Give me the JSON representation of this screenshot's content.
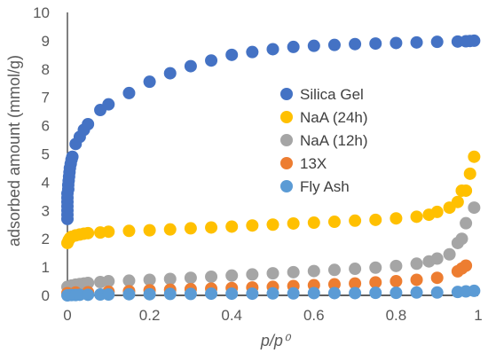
{
  "chart_data": {
    "type": "scatter",
    "title": "",
    "xlabel": "p/p⁰",
    "ylabel": "adsorbed amount (mmol/g)",
    "xlim": [
      0,
      1
    ],
    "ylim": [
      0,
      10
    ],
    "x_ticks": [
      "0",
      "0.2",
      "0.4",
      "0.6",
      "0.8",
      "1"
    ],
    "y_ticks": [
      "0",
      "1",
      "2",
      "3",
      "4",
      "5",
      "6",
      "7",
      "8",
      "9",
      "10"
    ],
    "grid": false,
    "legend_position": "right",
    "series": [
      {
        "name": "Silica Gel",
        "color": "#4472C4",
        "points": [
          [
            0,
            2.7
          ],
          [
            0,
            2.85
          ],
          [
            0,
            3.0
          ],
          [
            0,
            3.15
          ],
          [
            0,
            3.3
          ],
          [
            0,
            3.45
          ],
          [
            0,
            3.6
          ],
          [
            0.002,
            3.75
          ],
          [
            0.002,
            3.9
          ],
          [
            0.003,
            4.05
          ],
          [
            0.004,
            4.2
          ],
          [
            0.005,
            4.35
          ],
          [
            0.006,
            4.5
          ],
          [
            0.008,
            4.65
          ],
          [
            0.01,
            4.8
          ],
          [
            0.012,
            4.9
          ],
          [
            0.02,
            5.35
          ],
          [
            0.03,
            5.6
          ],
          [
            0.04,
            5.85
          ],
          [
            0.05,
            6.05
          ],
          [
            0.08,
            6.55
          ],
          [
            0.1,
            6.75
          ],
          [
            0.15,
            7.15
          ],
          [
            0.2,
            7.55
          ],
          [
            0.25,
            7.85
          ],
          [
            0.3,
            8.1
          ],
          [
            0.35,
            8.3
          ],
          [
            0.4,
            8.5
          ],
          [
            0.45,
            8.6
          ],
          [
            0.5,
            8.7
          ],
          [
            0.55,
            8.78
          ],
          [
            0.6,
            8.82
          ],
          [
            0.65,
            8.85
          ],
          [
            0.7,
            8.88
          ],
          [
            0.75,
            8.9
          ],
          [
            0.8,
            8.92
          ],
          [
            0.85,
            8.94
          ],
          [
            0.9,
            8.96
          ],
          [
            0.95,
            8.97
          ],
          [
            0.97,
            8.98
          ],
          [
            0.98,
            8.99
          ],
          [
            0.99,
            9.0
          ]
        ]
      },
      {
        "name": "NaA (24h)",
        "color": "#FFC000",
        "points": [
          [
            0,
            1.85
          ],
          [
            0.003,
            1.95
          ],
          [
            0.006,
            2.02
          ],
          [
            0.01,
            2.07
          ],
          [
            0.02,
            2.12
          ],
          [
            0.03,
            2.15
          ],
          [
            0.04,
            2.18
          ],
          [
            0.05,
            2.2
          ],
          [
            0.08,
            2.22
          ],
          [
            0.1,
            2.25
          ],
          [
            0.15,
            2.28
          ],
          [
            0.2,
            2.3
          ],
          [
            0.25,
            2.33
          ],
          [
            0.3,
            2.37
          ],
          [
            0.35,
            2.4
          ],
          [
            0.4,
            2.43
          ],
          [
            0.45,
            2.47
          ],
          [
            0.5,
            2.5
          ],
          [
            0.55,
            2.54
          ],
          [
            0.6,
            2.57
          ],
          [
            0.65,
            2.6
          ],
          [
            0.7,
            2.64
          ],
          [
            0.75,
            2.67
          ],
          [
            0.8,
            2.72
          ],
          [
            0.85,
            2.78
          ],
          [
            0.88,
            2.85
          ],
          [
            0.9,
            2.95
          ],
          [
            0.93,
            3.1
          ],
          [
            0.95,
            3.3
          ],
          [
            0.96,
            3.7
          ],
          [
            0.97,
            3.7
          ],
          [
            0.98,
            4.3
          ],
          [
            0.99,
            4.9
          ]
        ]
      },
      {
        "name": "NaA (12h)",
        "color": "#A5A5A5",
        "points": [
          [
            0,
            0.3
          ],
          [
            0.01,
            0.35
          ],
          [
            0.02,
            0.38
          ],
          [
            0.03,
            0.4
          ],
          [
            0.04,
            0.42
          ],
          [
            0.05,
            0.44
          ],
          [
            0.08,
            0.47
          ],
          [
            0.1,
            0.5
          ],
          [
            0.15,
            0.52
          ],
          [
            0.2,
            0.55
          ],
          [
            0.25,
            0.58
          ],
          [
            0.3,
            0.62
          ],
          [
            0.35,
            0.66
          ],
          [
            0.4,
            0.7
          ],
          [
            0.45,
            0.74
          ],
          [
            0.5,
            0.78
          ],
          [
            0.55,
            0.82
          ],
          [
            0.6,
            0.86
          ],
          [
            0.65,
            0.9
          ],
          [
            0.7,
            0.94
          ],
          [
            0.75,
            0.98
          ],
          [
            0.8,
            1.04
          ],
          [
            0.85,
            1.12
          ],
          [
            0.88,
            1.2
          ],
          [
            0.9,
            1.3
          ],
          [
            0.93,
            1.45
          ],
          [
            0.95,
            1.85
          ],
          [
            0.96,
            2.0
          ],
          [
            0.97,
            2.55
          ],
          [
            0.99,
            3.1
          ]
        ]
      },
      {
        "name": "13X",
        "color": "#ED7D31",
        "points": [
          [
            0,
            0.08
          ],
          [
            0.02,
            0.1
          ],
          [
            0.05,
            0.11
          ],
          [
            0.1,
            0.13
          ],
          [
            0.15,
            0.15
          ],
          [
            0.2,
            0.18
          ],
          [
            0.25,
            0.2
          ],
          [
            0.3,
            0.22
          ],
          [
            0.35,
            0.24
          ],
          [
            0.4,
            0.26
          ],
          [
            0.45,
            0.28
          ],
          [
            0.5,
            0.3
          ],
          [
            0.55,
            0.33
          ],
          [
            0.6,
            0.36
          ],
          [
            0.65,
            0.39
          ],
          [
            0.7,
            0.42
          ],
          [
            0.75,
            0.46
          ],
          [
            0.8,
            0.5
          ],
          [
            0.85,
            0.55
          ],
          [
            0.9,
            0.62
          ],
          [
            0.95,
            0.85
          ],
          [
            0.96,
            0.95
          ],
          [
            0.97,
            1.05
          ]
        ]
      },
      {
        "name": "Fly Ash",
        "color": "#5B9BD5",
        "points": [
          [
            0,
            0.0
          ],
          [
            0.01,
            0.01
          ],
          [
            0.02,
            0.01
          ],
          [
            0.03,
            0.02
          ],
          [
            0.05,
            0.02
          ],
          [
            0.08,
            0.03
          ],
          [
            0.1,
            0.03
          ],
          [
            0.15,
            0.04
          ],
          [
            0.2,
            0.04
          ],
          [
            0.25,
            0.05
          ],
          [
            0.3,
            0.05
          ],
          [
            0.35,
            0.06
          ],
          [
            0.4,
            0.06
          ],
          [
            0.45,
            0.06
          ],
          [
            0.5,
            0.07
          ],
          [
            0.55,
            0.07
          ],
          [
            0.6,
            0.08
          ],
          [
            0.65,
            0.08
          ],
          [
            0.7,
            0.08
          ],
          [
            0.75,
            0.09
          ],
          [
            0.8,
            0.09
          ],
          [
            0.85,
            0.1
          ],
          [
            0.9,
            0.1
          ],
          [
            0.95,
            0.12
          ],
          [
            0.97,
            0.14
          ],
          [
            0.99,
            0.16
          ]
        ]
      }
    ]
  }
}
